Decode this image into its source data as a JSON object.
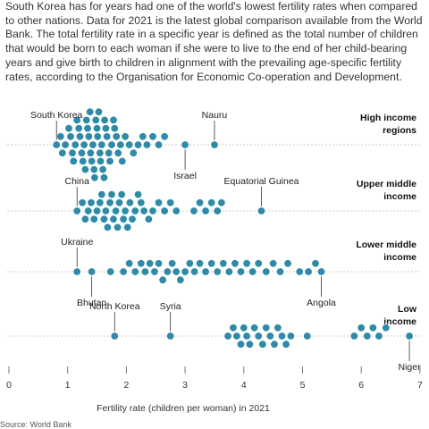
{
  "intro": "South Korea has for years had one of the world's lowest fertility rates when compared to other nations. Data for 2021 is the latest global comparison available from the World Bank. The total fertility rate in a specific year is defined as the total number of children that would be born to each woman if she were to live to the end of her child-bearing years and give birth to children in alignment with the prevailing age-specific fertility rates, according to the Organisation for Economic Co-operation and Development.",
  "source": "Source: World Bank",
  "colors": {
    "dot": "#2e8aa6",
    "dot_stroke": "#ffffff",
    "baseline": "#cccccc",
    "axis": "#777777"
  },
  "chart_data": {
    "type": "scatter",
    "subtype": "beeswarm",
    "xlabel": "Fertility rate (children per woman) in 2021",
    "xlim": [
      0,
      7
    ],
    "xticks": [
      "0",
      "1",
      "2",
      "3",
      "4",
      "5",
      "6",
      "7"
    ],
    "grid": false,
    "series": [
      {
        "name": "High income regions",
        "label_lines": [
          "High income",
          "regions"
        ],
        "values": [
          0.81,
          0.88,
          0.91,
          0.96,
          1.02,
          1.05,
          1.08,
          1.1,
          1.13,
          1.16,
          1.19,
          1.21,
          1.24,
          1.26,
          1.28,
          1.3,
          1.32,
          1.34,
          1.36,
          1.38,
          1.39,
          1.41,
          1.43,
          1.45,
          1.46,
          1.48,
          1.5,
          1.51,
          1.53,
          1.55,
          1.56,
          1.58,
          1.6,
          1.62,
          1.63,
          1.65,
          1.67,
          1.7,
          1.72,
          1.75,
          1.78,
          1.8,
          1.83,
          1.86,
          1.9,
          1.93,
          1.98,
          2.05,
          2.12,
          2.2,
          2.28,
          2.35,
          2.45,
          2.55,
          2.65,
          3.0,
          3.5
        ],
        "annotations": [
          {
            "text": "South Korea",
            "value": 0.81,
            "position": "above"
          },
          {
            "text": "Israel",
            "value": 3.0,
            "position": "below"
          },
          {
            "text": "Nauru",
            "value": 3.5,
            "position": "above"
          }
        ]
      },
      {
        "name": "Upper middle income",
        "label_lines": [
          "Upper middle",
          "income"
        ],
        "values": [
          1.16,
          1.25,
          1.3,
          1.35,
          1.4,
          1.45,
          1.5,
          1.55,
          1.58,
          1.62,
          1.65,
          1.68,
          1.72,
          1.75,
          1.78,
          1.82,
          1.85,
          1.88,
          1.92,
          1.95,
          1.98,
          2.02,
          2.06,
          2.1,
          2.15,
          2.2,
          2.25,
          2.3,
          2.38,
          2.45,
          2.55,
          2.65,
          2.75,
          2.85,
          3.15,
          3.25,
          3.35,
          3.45,
          3.55,
          3.62,
          4.3
        ],
        "annotations": [
          {
            "text": "China",
            "value": 1.16,
            "position": "above"
          },
          {
            "text": "Equatorial Guinea",
            "value": 4.3,
            "position": "above"
          }
        ]
      },
      {
        "name": "Lower middle income",
        "label_lines": [
          "Lower middle",
          "income"
        ],
        "values": [
          1.16,
          1.41,
          1.73,
          1.95,
          2.05,
          2.15,
          2.25,
          2.32,
          2.4,
          2.48,
          2.55,
          2.62,
          2.7,
          2.78,
          2.85,
          2.92,
          3.0,
          3.08,
          3.16,
          3.25,
          3.35,
          3.45,
          3.55,
          3.65,
          3.75,
          3.85,
          3.95,
          4.05,
          4.15,
          4.25,
          4.38,
          4.5,
          4.62,
          4.75,
          4.95,
          5.1,
          5.22,
          5.32
        ],
        "annotations": [
          {
            "text": "Ukraine",
            "value": 1.16,
            "position": "above"
          },
          {
            "text": "Bhutan",
            "value": 1.41,
            "position": "below"
          },
          {
            "text": "Angola",
            "value": 5.32,
            "position": "below"
          }
        ]
      },
      {
        "name": "Low income",
        "label_lines": [
          "Low",
          "income"
        ],
        "values": [
          1.8,
          2.75,
          3.73,
          3.82,
          3.88,
          3.95,
          4.0,
          4.05,
          4.1,
          4.18,
          4.25,
          4.32,
          4.38,
          4.45,
          4.52,
          4.58,
          4.65,
          4.72,
          4.8,
          5.08,
          5.88,
          6.0,
          6.1,
          6.2,
          6.3,
          6.42,
          6.82
        ],
        "annotations": [
          {
            "text": "North Korea",
            "value": 1.8,
            "position": "above"
          },
          {
            "text": "Syria",
            "value": 2.75,
            "position": "above"
          },
          {
            "text": "Niger",
            "value": 6.82,
            "position": "below"
          }
        ]
      }
    ]
  }
}
